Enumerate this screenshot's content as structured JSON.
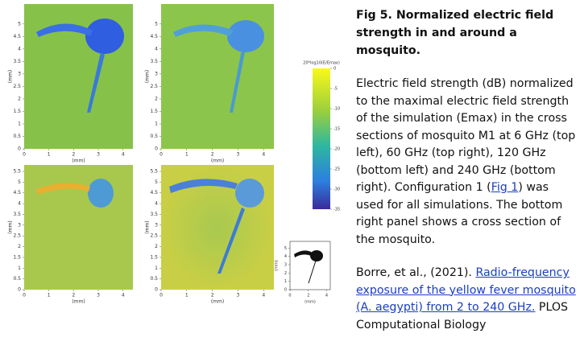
{
  "panels": [
    {
      "x_label": "(mm)",
      "y_label": "(mm)",
      "xlim": [
        0,
        4.4
      ],
      "ylim": [
        0,
        5.8
      ],
      "xticks": [
        0,
        1,
        2,
        3,
        4
      ],
      "yticks": [
        0,
        0.5,
        1,
        1.5,
        2,
        2.5,
        3,
        3.5,
        4,
        4.5,
        5
      ]
    },
    {
      "x_label": "(mm)",
      "y_label": "(mm)",
      "xlim": [
        0,
        4.4
      ],
      "ylim": [
        0,
        5.8
      ],
      "xticks": [
        0,
        1,
        2,
        3,
        4
      ],
      "yticks": [
        0,
        0.5,
        1,
        1.5,
        2,
        2.5,
        3,
        3.5,
        4,
        4.5,
        5
      ]
    },
    {
      "x_label": "(mm)",
      "y_label": "(mm)",
      "xlim": [
        0,
        4.4
      ],
      "ylim": [
        0,
        5.8
      ],
      "xticks": [
        0,
        1,
        2,
        3,
        4
      ],
      "yticks": [
        0,
        0.5,
        1,
        1.5,
        2,
        2.5,
        3,
        3.5,
        4,
        4.5,
        5,
        5.5
      ]
    },
    {
      "x_label": "(mm)",
      "y_label": "(mm)",
      "xlim": [
        0,
        4.4
      ],
      "ylim": [
        0,
        5.8
      ],
      "xticks": [
        0,
        1,
        2,
        3,
        4
      ],
      "yticks": [
        0,
        0.5,
        1,
        1.5,
        2,
        2.5,
        3,
        3.5,
        4,
        4.5,
        5,
        5.5
      ]
    }
  ],
  "inset": {
    "x_label": "(mm)",
    "y_label": "(mm)",
    "xlim": [
      0,
      4.4
    ],
    "ylim": [
      0,
      5.8
    ],
    "xticks": [
      0,
      2,
      4
    ],
    "yticks": [
      0,
      1,
      2,
      3,
      4,
      5
    ]
  },
  "colorbar": {
    "label": "20*log10(E/Emax)",
    "lim": [
      -35,
      0
    ],
    "ticks": [
      0,
      -5,
      -10,
      -15,
      -20,
      -25,
      -30,
      -35
    ]
  },
  "caption": {
    "title": "Fig 5. Normalized electric field strength in and around a mosquito.",
    "body": [
      "Electric field strength (dB) normalized to the maximal electric field strength of the simulation (Emax) in the cross sections of mosquito M1 at 6 GHz (top left), 60 GHz (top right), 120 GHz (bottom left) and 240 GHz (bottom right). Configuration 1 (",
      "Fig 1",
      ") was used for all simulations. The bottom right panel shows a cross section of the mosquito."
    ],
    "citation": [
      "Borre, et al., (2021). ",
      "Radio-frequency exposure of the yellow fever mosquito (A. aegypti) from 2 to 240 GHz.",
      " PLOS Computational Biology"
    ]
  }
}
